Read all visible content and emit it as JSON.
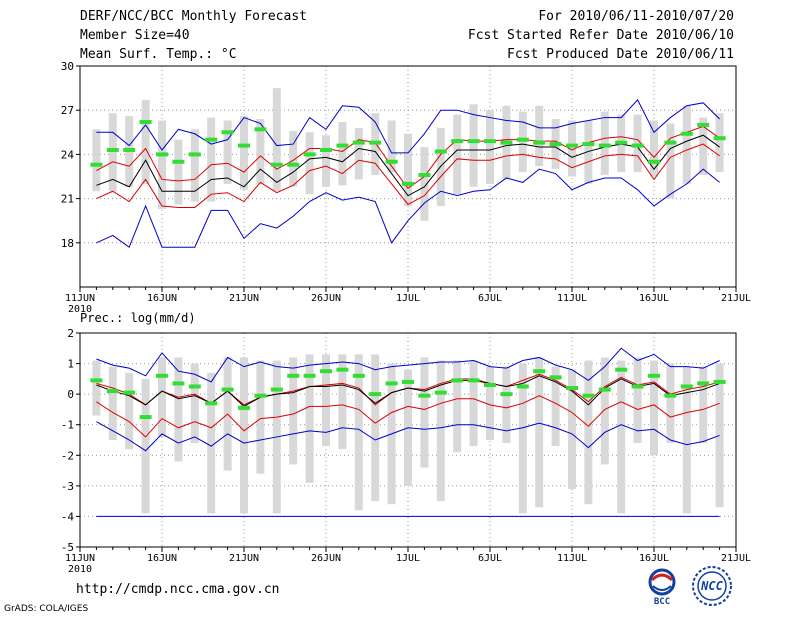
{
  "header": {
    "title": "DERF/NCC/BCC Monthly Forecast",
    "member_size": "Member Size=40",
    "variable": "Mean Surf. Temp.: °C",
    "period": "For 2010/06/11-2010/07/20",
    "started": "Fcst Started Refer Date 2010/06/10",
    "produced": "Fcst Produced Date 2010/06/11"
  },
  "footer": {
    "url": "http://cmdp.ncc.cma.gov.cn",
    "grads": "GrADS: COLA/IGES",
    "logo_bcc": "BCC",
    "logo_ncc": "NCC"
  },
  "colors": {
    "box": "#d8d8d8",
    "mean": "#33dd33",
    "median": "#000000",
    "inner": "#dd0000",
    "outer": "#0000cc",
    "grid": "#999999"
  },
  "chart_data": [
    {
      "type": "box-ensemble",
      "title": "Mean Surf. Temp.: °C",
      "x_tick_labels": [
        "11JUN",
        "16JUN",
        "21JUN",
        "26JUN",
        "1JUL",
        "6JUL",
        "11JUL",
        "16JUL",
        "21JUL"
      ],
      "x_year_label": "2010",
      "x_day_start": 0,
      "x_day_end": 40,
      "ylim": [
        15,
        30
      ],
      "yticks": [
        18,
        21,
        24,
        27,
        30
      ],
      "days": [
        1,
        2,
        3,
        4,
        5,
        6,
        7,
        8,
        9,
        10,
        11,
        12,
        13,
        14,
        15,
        16,
        17,
        18,
        19,
        20,
        21,
        22,
        23,
        24,
        25,
        26,
        27,
        28,
        29,
        30,
        31,
        32,
        33,
        34,
        35,
        36,
        37,
        38,
        39
      ],
      "box_low": [
        21.5,
        21.5,
        21.8,
        22.0,
        20.3,
        20.6,
        20.8,
        20.8,
        22.0,
        21.6,
        22.0,
        21.5,
        21.8,
        21.3,
        21.8,
        21.9,
        22.3,
        22.6,
        22.8,
        20.5,
        19.5,
        20.5,
        21.3,
        21.8,
        22.0,
        22.3,
        22.8,
        23.2,
        23.0,
        22.5,
        22.0,
        22.6,
        22.8,
        22.8,
        22.5,
        21.0,
        22.0,
        22.6,
        22.8
      ],
      "box_high": [
        25.7,
        26.8,
        26.6,
        27.7,
        26.3,
        25.0,
        25.7,
        26.5,
        26.3,
        26.6,
        26.4,
        28.5,
        25.6,
        25.5,
        25.3,
        26.2,
        25.8,
        26.8,
        26.3,
        25.4,
        24.5,
        25.8,
        26.7,
        27.4,
        27.0,
        27.3,
        26.9,
        27.3,
        26.4,
        26.3,
        26.3,
        26.9,
        26.7,
        26.7,
        26.3,
        26.1,
        27.3,
        26.5,
        26.8
      ],
      "ensemble_mean": [
        23.3,
        24.3,
        24.3,
        26.2,
        24.0,
        23.5,
        24.0,
        25.0,
        25.5,
        24.6,
        25.7,
        23.3,
        23.3,
        24.0,
        24.3,
        24.6,
        24.8,
        24.8,
        23.5,
        22.0,
        22.6,
        24.2,
        24.9,
        24.9,
        24.9,
        24.8,
        25.0,
        24.8,
        24.7,
        24.6,
        24.7,
        24.6,
        24.8,
        24.6,
        23.5,
        24.8,
        25.4,
        26.0,
        25.1
      ],
      "median": [
        21.9,
        22.3,
        21.8,
        23.6,
        21.5,
        21.5,
        21.5,
        22.3,
        22.4,
        21.8,
        23.0,
        22.1,
        22.8,
        23.7,
        23.8,
        23.5,
        24.4,
        24.2,
        22.7,
        21.2,
        21.8,
        23.2,
        24.3,
        24.3,
        24.3,
        24.6,
        24.7,
        24.5,
        24.5,
        23.8,
        24.2,
        24.5,
        24.7,
        24.5,
        23.0,
        24.4,
        24.9,
        25.3,
        24.5
      ],
      "inner_upper": [
        22.9,
        23.5,
        23.2,
        24.4,
        22.3,
        22.2,
        22.3,
        23.3,
        23.4,
        22.8,
        23.9,
        23.0,
        23.6,
        24.4,
        24.4,
        24.2,
        25.0,
        24.8,
        23.2,
        21.7,
        22.5,
        24.0,
        25.0,
        24.9,
        24.9,
        25.0,
        25.0,
        24.9,
        24.9,
        24.3,
        24.8,
        25.1,
        25.2,
        25.0,
        23.8,
        25.1,
        25.5,
        25.9,
        25.1
      ],
      "inner_lower": [
        21.0,
        21.5,
        20.8,
        22.3,
        20.5,
        20.4,
        20.4,
        21.3,
        21.4,
        20.8,
        22.1,
        21.4,
        21.9,
        22.9,
        23.2,
        22.7,
        23.6,
        23.4,
        22.0,
        20.6,
        21.2,
        22.5,
        23.7,
        23.6,
        23.6,
        23.9,
        24.0,
        23.8,
        23.7,
        23.1,
        23.5,
        23.9,
        24.0,
        23.9,
        22.3,
        23.8,
        24.3,
        24.7,
        23.9
      ],
      "outer_upper": [
        25.5,
        25.5,
        24.6,
        26.0,
        24.3,
        25.7,
        25.4,
        24.7,
        25.0,
        26.5,
        26.1,
        24.6,
        24.7,
        26.5,
        25.7,
        27.3,
        27.2,
        26.2,
        24.1,
        24.1,
        25.4,
        27.0,
        27.0,
        26.7,
        26.5,
        26.3,
        26.2,
        25.8,
        25.8,
        26.1,
        26.3,
        26.5,
        26.5,
        27.7,
        25.5,
        26.5,
        27.3,
        27.5,
        26.4
      ],
      "outer_lower": [
        18.0,
        18.5,
        17.7,
        20.5,
        17.7,
        17.7,
        17.7,
        20.2,
        20.2,
        18.3,
        19.3,
        19.0,
        19.8,
        20.8,
        21.4,
        20.9,
        21.1,
        20.8,
        18.0,
        19.5,
        20.7,
        21.5,
        21.2,
        21.5,
        21.6,
        22.4,
        22.1,
        23.0,
        22.7,
        21.6,
        22.1,
        22.4,
        22.4,
        21.6,
        20.5,
        21.3,
        22.0,
        23.0,
        22.1
      ]
    },
    {
      "type": "box-ensemble",
      "title": "Prec.: log(mm/d)",
      "x_tick_labels": [
        "11JUN",
        "16JUN",
        "21JUN",
        "26JUN",
        "1JUL",
        "6JUL",
        "11JUL",
        "16JUL",
        "21JUL"
      ],
      "x_year_label": "2010",
      "x_day_start": 0,
      "x_day_end": 40,
      "ylim": [
        -5,
        2
      ],
      "yticks": [
        -5,
        -4,
        -3,
        -2,
        -1,
        0,
        1,
        2
      ],
      "days": [
        1,
        2,
        3,
        4,
        5,
        6,
        7,
        8,
        9,
        10,
        11,
        12,
        13,
        14,
        15,
        16,
        17,
        18,
        19,
        20,
        21,
        22,
        23,
        24,
        25,
        26,
        27,
        28,
        29,
        30,
        31,
        32,
        33,
        34,
        35,
        36,
        37,
        38,
        39
      ],
      "box_low": [
        -0.7,
        -1.5,
        -1.8,
        -3.9,
        -1.4,
        -2.2,
        -1.6,
        -3.9,
        -2.5,
        -3.9,
        -2.6,
        -3.9,
        -2.3,
        -2.9,
        -1.7,
        -1.8,
        -3.8,
        -3.5,
        -3.6,
        -3.0,
        -2.4,
        -3.5,
        -1.9,
        -1.7,
        -1.5,
        -1.6,
        -3.9,
        -3.7,
        -1.7,
        -3.1,
        -3.6,
        -2.3,
        -3.9,
        -1.6,
        -2.0,
        -1.6,
        -3.9,
        -1.6,
        -3.7
      ],
      "box_high": [
        1.1,
        0.9,
        0.7,
        0.5,
        1.2,
        1.2,
        1.0,
        0.7,
        1.2,
        1.2,
        1.1,
        1.1,
        1.2,
        1.3,
        1.3,
        1.3,
        1.3,
        1.3,
        1.0,
        0.8,
        1.2,
        1.1,
        1.1,
        1.1,
        0.9,
        0.9,
        1.0,
        1.2,
        0.9,
        0.8,
        1.1,
        1.2,
        1.1,
        1.2,
        1.1,
        1.0,
        0.9,
        0.9,
        1.0
      ],
      "ensemble_mean": [
        0.45,
        0.1,
        0.05,
        -0.75,
        0.6,
        0.35,
        0.25,
        -0.3,
        0.15,
        -0.45,
        -0.05,
        0.15,
        0.6,
        0.6,
        0.75,
        0.8,
        0.6,
        0.0,
        0.35,
        0.4,
        -0.05,
        0.05,
        0.45,
        0.45,
        0.3,
        0.0,
        0.25,
        0.75,
        0.55,
        0.2,
        -0.05,
        0.15,
        0.8,
        0.25,
        0.6,
        -0.05,
        0.25,
        0.35,
        0.4
      ],
      "median": [
        0.3,
        0.1,
        -0.05,
        -0.35,
        0.1,
        -0.15,
        -0.05,
        -0.3,
        0.1,
        -0.4,
        -0.1,
        0.0,
        0.05,
        0.25,
        0.25,
        0.3,
        0.15,
        -0.3,
        0.05,
        0.2,
        0.1,
        0.3,
        0.45,
        0.45,
        0.35,
        0.25,
        0.35,
        0.6,
        0.4,
        0.1,
        -0.35,
        0.2,
        0.5,
        0.25,
        0.35,
        -0.05,
        0.05,
        0.15,
        0.35
      ],
      "inner_upper": [
        0.35,
        0.2,
        0.0,
        -0.35,
        0.1,
        -0.1,
        0.0,
        -0.3,
        0.1,
        -0.35,
        -0.1,
        0.0,
        0.1,
        0.25,
        0.3,
        0.35,
        0.2,
        -0.35,
        0.05,
        0.2,
        0.15,
        0.35,
        0.5,
        0.5,
        0.35,
        0.25,
        0.45,
        0.65,
        0.45,
        0.15,
        -0.25,
        0.25,
        0.55,
        0.3,
        0.4,
        0.0,
        0.15,
        0.25,
        0.4
      ],
      "inner_lower": [
        -0.25,
        -0.6,
        -0.9,
        -1.4,
        -0.8,
        -1.1,
        -0.9,
        -1.1,
        -0.65,
        -1.2,
        -0.8,
        -0.75,
        -0.65,
        -0.4,
        -0.4,
        -0.35,
        -0.5,
        -0.95,
        -0.6,
        -0.4,
        -0.5,
        -0.3,
        -0.15,
        -0.15,
        -0.35,
        -0.45,
        -0.3,
        -0.05,
        -0.3,
        -0.6,
        -1.05,
        -0.5,
        -0.25,
        -0.5,
        -0.35,
        -0.75,
        -0.6,
        -0.5,
        -0.3
      ],
      "outer_upper": [
        1.15,
        0.95,
        0.85,
        0.6,
        1.35,
        0.75,
        0.65,
        0.4,
        1.2,
        0.9,
        1.05,
        0.9,
        0.85,
        0.95,
        1.0,
        1.05,
        1.0,
        0.8,
        0.9,
        0.95,
        1.0,
        1.05,
        1.05,
        1.1,
        0.9,
        0.85,
        1.1,
        1.2,
        0.95,
        0.8,
        0.45,
        0.9,
        1.5,
        1.1,
        1.3,
        0.9,
        0.9,
        0.85,
        1.1
      ],
      "outer_lower": [
        -0.9,
        -1.2,
        -1.5,
        -1.85,
        -1.3,
        -1.6,
        -1.4,
        -1.7,
        -1.3,
        -1.6,
        -1.5,
        -1.4,
        -1.3,
        -1.2,
        -1.25,
        -1.1,
        -1.15,
        -1.5,
        -1.3,
        -1.1,
        -1.15,
        -1.1,
        -1.0,
        -1.0,
        -1.1,
        -1.2,
        -1.1,
        -0.95,
        -1.1,
        -1.3,
        -1.75,
        -1.25,
        -1.0,
        -1.2,
        -1.15,
        -1.5,
        -1.65,
        -1.55,
        -1.35
      ],
      "reference_line": -4
    }
  ]
}
